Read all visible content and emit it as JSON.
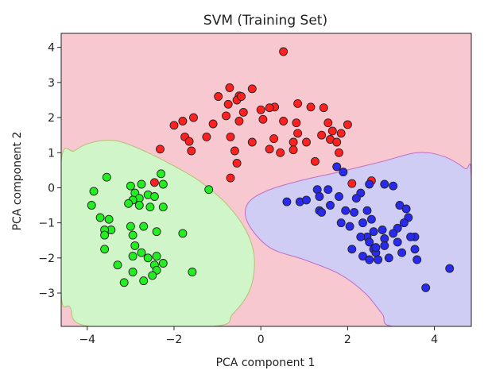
{
  "chart_data": {
    "type": "scatter",
    "title": "SVM (Training Set)",
    "xlabel": "PCA component 1",
    "ylabel": "PCA component 2",
    "xlim": [
      -4.6,
      4.85
    ],
    "ylim": [
      -3.95,
      4.4
    ],
    "xticks": [
      -4,
      -2,
      0,
      2,
      4
    ],
    "yticks": [
      -3,
      -2,
      -1,
      0,
      1,
      2,
      3,
      4
    ],
    "xtick_labels": [
      "−4",
      "−2",
      "0",
      "2",
      "4"
    ],
    "ytick_labels": [
      "−3",
      "−2",
      "−1",
      "0",
      "1",
      "2",
      "3",
      "4"
    ],
    "grid": false,
    "colors": {
      "background_region": "#f8c8d0",
      "green_region": "#d0f5c8",
      "blue_region": "#cfcdf4",
      "green_region_edge": "#b5c070",
      "blue_region_edge": "#c06bc8",
      "red_point": "#ff2020",
      "green_point": "#22ee22",
      "blue_point": "#2a2aee",
      "point_edge": "#222222"
    },
    "decision_regions": [
      {
        "class": "green",
        "boundary": [
          [
            -4.6,
            0.75
          ],
          [
            -4.3,
            1.05
          ],
          [
            -4.0,
            1.25
          ],
          [
            -3.6,
            1.35
          ],
          [
            -3.2,
            1.3
          ],
          [
            -2.6,
            1.0
          ],
          [
            -2.0,
            0.62
          ],
          [
            -1.4,
            0.18
          ],
          [
            -0.8,
            -0.45
          ],
          [
            -0.35,
            -1.2
          ],
          [
            -0.15,
            -2.0
          ],
          [
            -0.25,
            -2.9
          ],
          [
            -0.65,
            -3.6
          ],
          [
            -1.1,
            -3.95
          ],
          [
            -3.95,
            -3.95
          ],
          [
            -4.4,
            -3.4
          ],
          [
            -4.6,
            -3.0
          ]
        ]
      },
      {
        "class": "blue",
        "boundary": [
          [
            4.85,
            -3.95
          ],
          [
            3.05,
            -3.95
          ],
          [
            2.8,
            -3.6
          ],
          [
            2.4,
            -3.0
          ],
          [
            1.8,
            -2.45
          ],
          [
            1.0,
            -2.05
          ],
          [
            0.2,
            -1.7
          ],
          [
            -0.3,
            -1.0
          ],
          [
            -0.3,
            -0.45
          ],
          [
            0.15,
            -0.08
          ],
          [
            0.9,
            0.2
          ],
          [
            1.8,
            0.45
          ],
          [
            2.8,
            0.75
          ],
          [
            3.6,
            1.0
          ],
          [
            4.2,
            0.9
          ],
          [
            4.7,
            0.55
          ],
          [
            4.85,
            0.3
          ]
        ]
      }
    ],
    "series": [
      {
        "color_key": "red_point",
        "points": [
          [
            0.52,
            3.88
          ],
          [
            -0.72,
            2.85
          ],
          [
            -0.2,
            2.82
          ],
          [
            -0.5,
            2.62
          ],
          [
            -0.55,
            2.5
          ],
          [
            -0.45,
            2.6
          ],
          [
            -0.75,
            2.38
          ],
          [
            -0.98,
            2.6
          ],
          [
            0.32,
            2.3
          ],
          [
            0.2,
            2.28
          ],
          [
            0.85,
            2.4
          ],
          [
            1.15,
            2.3
          ],
          [
            1.45,
            2.28
          ],
          [
            0.0,
            2.22
          ],
          [
            -0.4,
            2.15
          ],
          [
            0.05,
            1.95
          ],
          [
            -0.5,
            1.9
          ],
          [
            -0.8,
            2.05
          ],
          [
            -1.8,
            1.9
          ],
          [
            -1.55,
            2.0
          ],
          [
            -2.0,
            1.78
          ],
          [
            -1.1,
            1.82
          ],
          [
            0.52,
            1.9
          ],
          [
            0.82,
            1.85
          ],
          [
            1.55,
            1.85
          ],
          [
            2.0,
            1.8
          ],
          [
            1.65,
            1.62
          ],
          [
            1.85,
            1.55
          ],
          [
            0.85,
            1.55
          ],
          [
            1.4,
            1.5
          ],
          [
            1.6,
            1.38
          ],
          [
            1.75,
            1.3
          ],
          [
            0.3,
            1.4
          ],
          [
            0.75,
            1.3
          ],
          [
            1.05,
            1.3
          ],
          [
            -0.2,
            1.3
          ],
          [
            -1.75,
            1.45
          ],
          [
            -1.65,
            1.32
          ],
          [
            -1.25,
            1.45
          ],
          [
            -0.7,
            1.45
          ],
          [
            -2.32,
            1.1
          ],
          [
            -1.6,
            1.05
          ],
          [
            -0.6,
            1.05
          ],
          [
            0.2,
            1.1
          ],
          [
            0.75,
            1.08
          ],
          [
            0.45,
            1.0
          ],
          [
            1.8,
            1.0
          ],
          [
            -0.55,
            0.7
          ],
          [
            1.25,
            0.75
          ],
          [
            -0.7,
            0.28
          ],
          [
            2.1,
            0.12
          ],
          [
            2.55,
            0.2
          ],
          [
            -2.45,
            0.15
          ]
        ]
      },
      {
        "color_key": "green_point",
        "points": [
          [
            -3.55,
            0.3
          ],
          [
            -2.3,
            0.4
          ],
          [
            -3.0,
            0.05
          ],
          [
            -2.75,
            0.1
          ],
          [
            -2.25,
            0.1
          ],
          [
            -1.2,
            -0.05
          ],
          [
            -3.85,
            -0.1
          ],
          [
            -2.9,
            -0.15
          ],
          [
            -2.6,
            -0.2
          ],
          [
            -2.8,
            -0.3
          ],
          [
            -2.45,
            -0.25
          ],
          [
            -2.95,
            -0.35
          ],
          [
            -3.05,
            -0.45
          ],
          [
            -2.8,
            -0.5
          ],
          [
            -2.55,
            -0.55
          ],
          [
            -2.25,
            -0.55
          ],
          [
            -3.9,
            -0.5
          ],
          [
            -3.7,
            -0.85
          ],
          [
            -3.5,
            -0.9
          ],
          [
            -3.45,
            -1.2
          ],
          [
            -3.6,
            -1.2
          ],
          [
            -3.6,
            -1.35
          ],
          [
            -3.0,
            -1.1
          ],
          [
            -2.7,
            -1.1
          ],
          [
            -2.95,
            -1.35
          ],
          [
            -2.4,
            -1.25
          ],
          [
            -1.8,
            -1.3
          ],
          [
            -2.9,
            -1.65
          ],
          [
            -3.6,
            -1.75
          ],
          [
            -2.75,
            -1.85
          ],
          [
            -2.95,
            -1.95
          ],
          [
            -2.4,
            -1.95
          ],
          [
            -2.6,
            -2.0
          ],
          [
            -3.3,
            -2.2
          ],
          [
            -2.25,
            -2.15
          ],
          [
            -2.45,
            -2.2
          ],
          [
            -2.95,
            -2.4
          ],
          [
            -2.4,
            -2.35
          ],
          [
            -1.58,
            -2.4
          ],
          [
            -2.5,
            -2.5
          ],
          [
            -3.15,
            -2.7
          ],
          [
            -2.7,
            -2.65
          ]
        ]
      },
      {
        "color_key": "blue_point",
        "points": [
          [
            1.75,
            0.6
          ],
          [
            1.9,
            0.45
          ],
          [
            2.5,
            0.1
          ],
          [
            2.85,
            0.1
          ],
          [
            3.05,
            0.05
          ],
          [
            1.55,
            -0.05
          ],
          [
            1.3,
            -0.05
          ],
          [
            2.3,
            -0.15
          ],
          [
            1.35,
            -0.25
          ],
          [
            1.8,
            -0.25
          ],
          [
            2.2,
            -0.3
          ],
          [
            0.6,
            -0.4
          ],
          [
            0.9,
            -0.4
          ],
          [
            1.05,
            -0.35
          ],
          [
            1.6,
            -0.5
          ],
          [
            3.2,
            -0.5
          ],
          [
            3.35,
            -0.6
          ],
          [
            1.95,
            -0.65
          ],
          [
            1.35,
            -0.65
          ],
          [
            1.4,
            -0.7
          ],
          [
            2.15,
            -0.7
          ],
          [
            2.45,
            -0.65
          ],
          [
            2.55,
            -0.9
          ],
          [
            2.35,
            -1.0
          ],
          [
            3.4,
            -0.85
          ],
          [
            3.3,
            -1.0
          ],
          [
            3.15,
            -1.15
          ],
          [
            2.6,
            -1.25
          ],
          [
            1.85,
            -1.0
          ],
          [
            2.05,
            -1.1
          ],
          [
            2.8,
            -1.2
          ],
          [
            2.45,
            -1.4
          ],
          [
            2.3,
            -1.4
          ],
          [
            2.85,
            -1.45
          ],
          [
            3.05,
            -1.3
          ],
          [
            2.85,
            -1.65
          ],
          [
            3.15,
            -1.55
          ],
          [
            3.55,
            -1.4
          ],
          [
            3.45,
            -1.4
          ],
          [
            2.5,
            -1.55
          ],
          [
            2.6,
            -1.75
          ],
          [
            2.1,
            -1.75
          ],
          [
            2.65,
            -1.85
          ],
          [
            2.95,
            -2.0
          ],
          [
            2.7,
            -2.05
          ],
          [
            2.35,
            -1.95
          ],
          [
            2.5,
            -2.05
          ],
          [
            3.55,
            -1.75
          ],
          [
            3.6,
            -2.05
          ],
          [
            3.25,
            -1.85
          ],
          [
            2.65,
            -1.7
          ],
          [
            4.35,
            -2.3
          ],
          [
            3.8,
            -2.85
          ]
        ]
      }
    ]
  }
}
